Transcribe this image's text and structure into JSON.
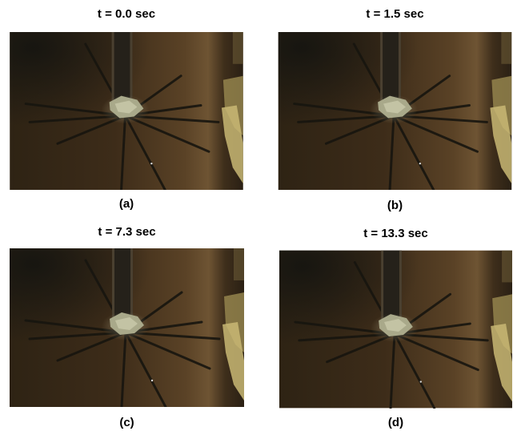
{
  "panels": [
    {
      "title": "t = 0.0 sec",
      "label": "(a)"
    },
    {
      "title": "t = 1.5 sec",
      "label": "(b)"
    },
    {
      "title": "t = 7.3 sec",
      "label": "(c)"
    },
    {
      "title": "t = 13.3 sec",
      "label": "(d)"
    }
  ]
}
